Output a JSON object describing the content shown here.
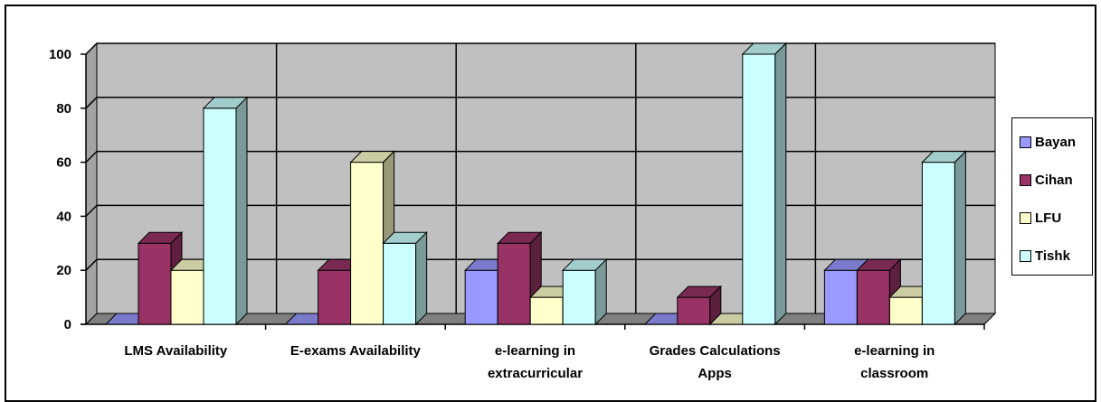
{
  "chart_data": {
    "type": "bar",
    "style": "3d-clustered-column",
    "title": "",
    "xlabel": "",
    "ylabel": "",
    "ylim": [
      0,
      100
    ],
    "yticks": [
      0,
      20,
      40,
      60,
      80,
      100
    ],
    "grid": true,
    "legend_position": "right",
    "categories": [
      [
        "LMS Availability"
      ],
      [
        "E-exams Availability"
      ],
      [
        "e-learning  in",
        "extracurricular"
      ],
      [
        "Grades Calculations",
        "Apps"
      ],
      [
        "e-learning  in",
        "classroom"
      ]
    ],
    "series": [
      {
        "name": "Bayan",
        "color": "#9999ff",
        "values": [
          0,
          0,
          20,
          0,
          20
        ]
      },
      {
        "name": "Cihan",
        "color": "#993366",
        "values": [
          30,
          20,
          30,
          10,
          20
        ]
      },
      {
        "name": "LFU",
        "color": "#ffffcc",
        "values": [
          20,
          60,
          10,
          0,
          10
        ]
      },
      {
        "name": "Tishk",
        "color": "#ccffff",
        "values": [
          80,
          30,
          20,
          100,
          60
        ]
      }
    ],
    "wall_color": "#c0c0c0",
    "floor_color": "#808080"
  }
}
